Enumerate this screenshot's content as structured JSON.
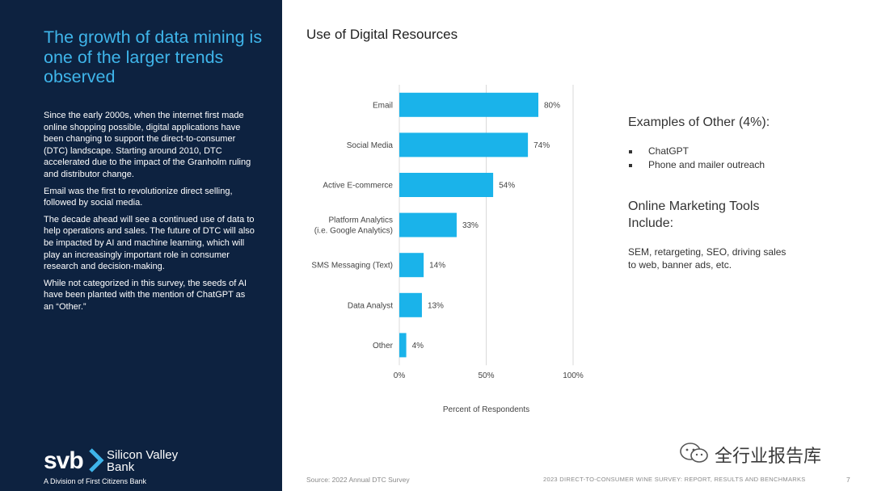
{
  "sidebar": {
    "headline": "The growth of data mining is one of the larger trends observed",
    "paragraphs": [
      "Since the early 2000s, when the internet first made online shopping possible, digital applications have been changing to support the direct-to-consumer (DTC) landscape. Starting around 2010, DTC accelerated due to the impact of the Granholm ruling and distributor change.",
      "Email was the first to revolutionize direct selling, followed by social media.",
      "The decade ahead will see a continued use of data to help operations and sales. The future of DTC will also be impacted by AI and machine learning, which will play an increasingly important role in consumer research and decision-making.",
      "While not categorized in this survey, the seeds of AI have been planted with the mention of ChatGPT as an “Other.”"
    ],
    "logo": {
      "mark": "svb",
      "name": "Silicon Valley Bank",
      "subtitle": "A Division of First Citizens Bank"
    }
  },
  "chart_title": "Use of Digital Resources",
  "chart_data": {
    "type": "bar",
    "orientation": "horizontal",
    "categories": [
      "Email",
      "Social Media",
      "Active E-commerce",
      "Platform Analytics (i.e. Google Analytics)",
      "SMS Messaging (Text)",
      "Data Analyst",
      "Other"
    ],
    "category_lines": [
      [
        "Email"
      ],
      [
        "Social Media"
      ],
      [
        "Active E-commerce"
      ],
      [
        "Platform Analytics",
        "(i.e. Google Analytics)"
      ],
      [
        "SMS Messaging (Text)"
      ],
      [
        "Data Analyst"
      ],
      [
        "Other"
      ]
    ],
    "values": [
      80,
      74,
      54,
      33,
      14,
      13,
      4
    ],
    "value_labels": [
      "80%",
      "74%",
      "54%",
      "33%",
      "14%",
      "13%",
      "4%"
    ],
    "xlabel": "Percent of Respondents",
    "xlim": [
      0,
      100
    ],
    "ticks": [
      0,
      50,
      100
    ],
    "tick_labels": [
      "0%",
      "50%",
      "100%"
    ],
    "gridlines": true,
    "bar_color": "#1ab3ea"
  },
  "other_examples": {
    "title": "Examples of Other (4%):",
    "items": [
      "ChatGPT",
      "Phone and mailer outreach"
    ]
  },
  "online_tools": {
    "title": "Online Marketing Tools Include:",
    "text": "SEM, retargeting, SEO, driving sales to web, banner ads, etc."
  },
  "footer": {
    "source": "Source: 2022 Annual DTC Survey",
    "report": "2023 DIRECT-TO-CONSUMER WINE SURVEY: REPORT, RESULTS AND BENCHMARKS",
    "page": "7"
  },
  "watermark": {
    "text": "全行业报告库",
    "icon": "wechat-icon"
  },
  "colors": {
    "sidebar_bg": "#0d2240",
    "headline": "#3fb5ea",
    "bar": "#1ab3ea"
  }
}
